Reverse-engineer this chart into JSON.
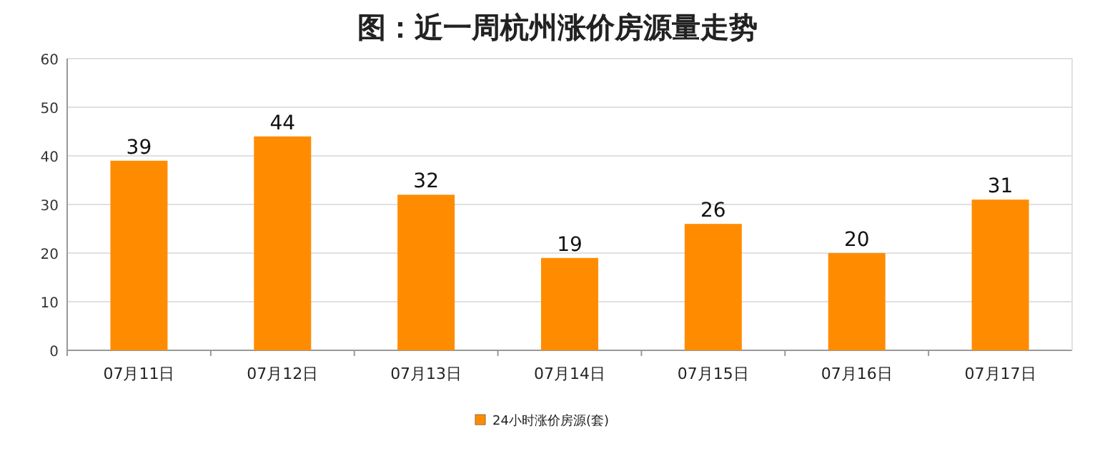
{
  "chart_data": {
    "type": "bar",
    "title": "图：近一周杭州涨价房源量走势",
    "categories": [
      "07月11日",
      "07月12日",
      "07月13日",
      "07月14日",
      "07月15日",
      "07月16日",
      "07月17日"
    ],
    "series": [
      {
        "name": "24小时涨价房源(套)",
        "color": "#ff8c00",
        "values": [
          39,
          44,
          32,
          19,
          26,
          20,
          31
        ]
      }
    ],
    "ylim": [
      0,
      60
    ],
    "yticks": [
      0,
      10,
      20,
      30,
      40,
      50,
      60
    ],
    "grid": "y",
    "data_labels": true,
    "legend": "bottom"
  }
}
